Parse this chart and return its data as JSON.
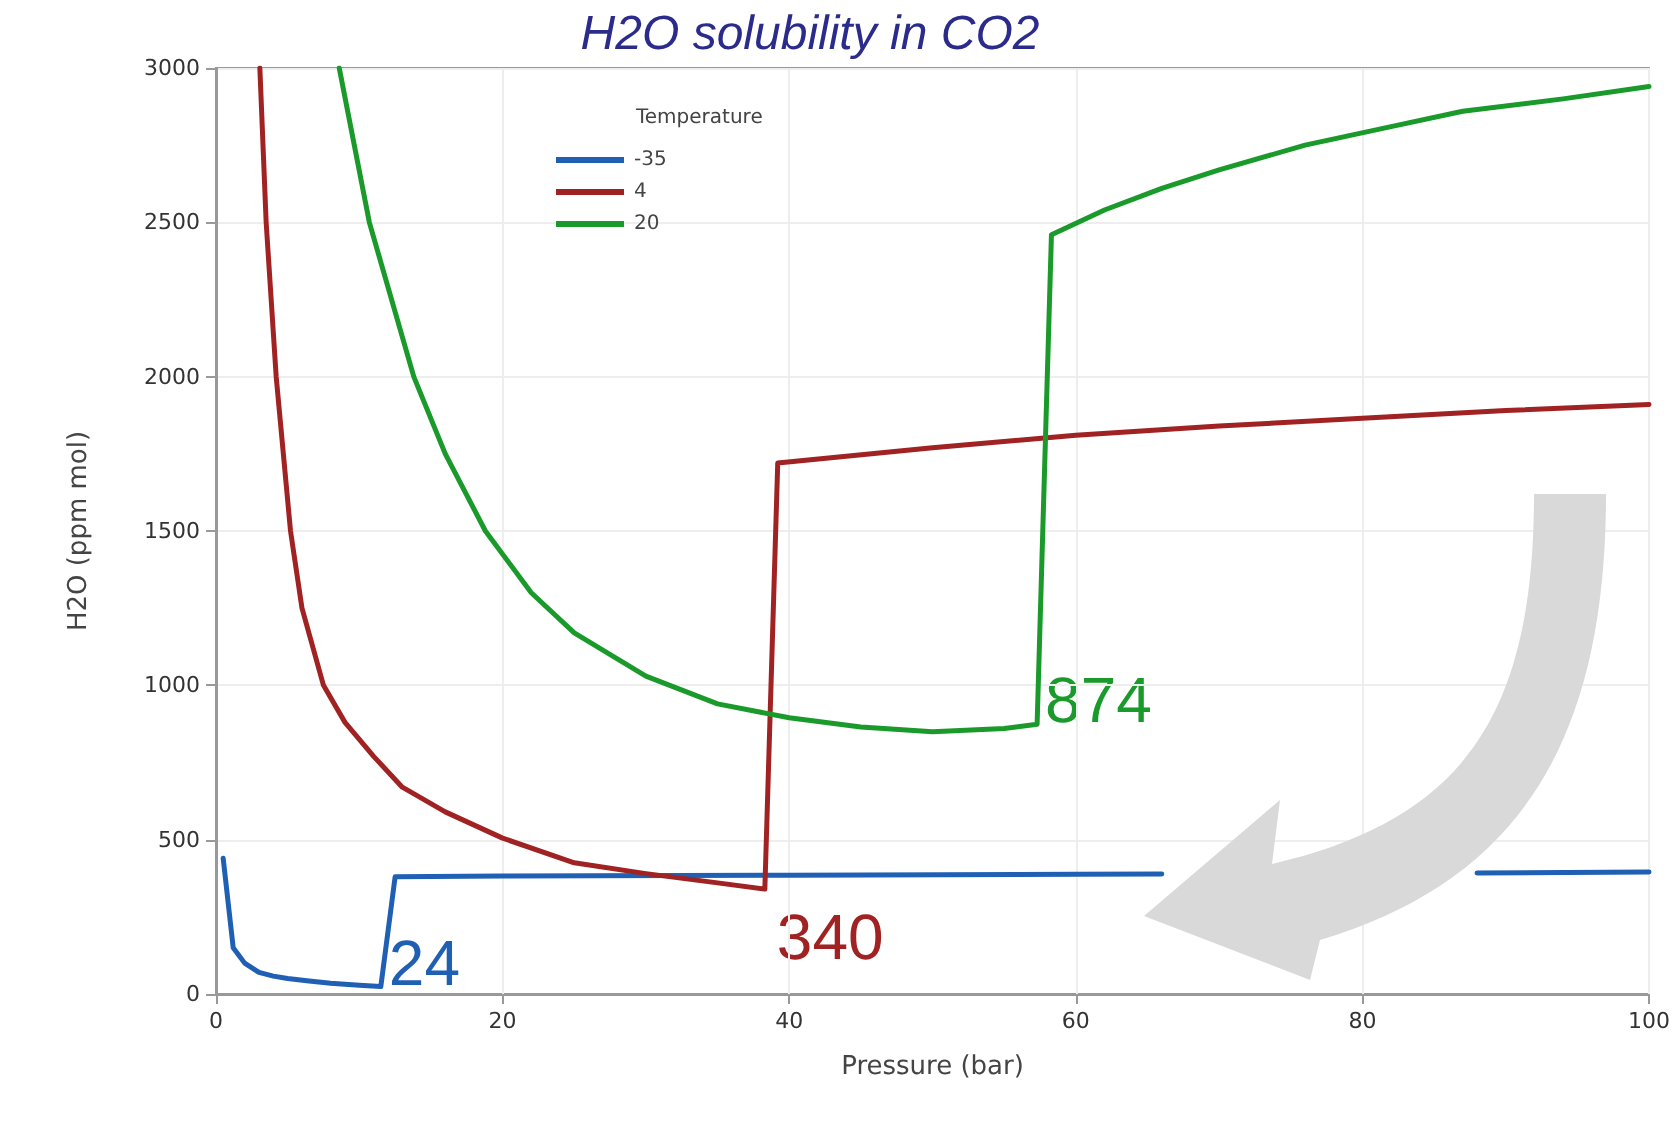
{
  "chart_data": {
    "type": "line",
    "title": "H2O solubility in CO2",
    "xlabel": "Pressure (bar)",
    "ylabel": "H2O (ppm mol)",
    "legend_title": "Temperature",
    "series": [
      {
        "name": "-35",
        "color": "#1f5fb4",
        "x": [
          0.5,
          1.2,
          2,
          3,
          4,
          5,
          6.5,
          8,
          10,
          11.5,
          12.5,
          20,
          40,
          60,
          66,
          76,
          88,
          100
        ],
        "values": [
          440,
          150,
          100,
          70,
          58,
          50,
          42,
          35,
          28,
          24,
          380,
          382,
          385,
          388,
          389,
          null,
          392,
          395
        ]
      },
      {
        "name": "4",
        "color": "#a02222",
        "x": [
          3.06,
          3.5,
          4.2,
          5.2,
          6,
          7.5,
          9,
          11,
          13,
          16,
          20,
          25,
          30,
          35,
          38.3,
          39.2,
          50,
          60,
          70,
          80,
          90,
          100
        ],
        "values": [
          3000,
          2500,
          2000,
          1500,
          1250,
          1000,
          880,
          770,
          670,
          590,
          505,
          425,
          390,
          360,
          340,
          1720,
          1770,
          1810,
          1840,
          1865,
          1890,
          1910
        ]
      },
      {
        "name": "20",
        "color": "#1a9a2a",
        "x": [
          8.6,
          10.7,
          13.8,
          16,
          18.8,
          22,
          25,
          30,
          35,
          40,
          45,
          50,
          55,
          57.3,
          58.3,
          62,
          66,
          70,
          76,
          82,
          87,
          94,
          100
        ],
        "values": [
          3000,
          2500,
          2000,
          1750,
          1500,
          1300,
          1170,
          1030,
          940,
          895,
          865,
          850,
          860,
          874,
          2460,
          2540,
          2610,
          2670,
          2750,
          2810,
          2860,
          2900,
          2940
        ]
      }
    ],
    "annotations": [
      {
        "text": "24",
        "x": 11.5,
        "y": 24
      },
      {
        "text": "340",
        "x": 38.3,
        "y": 340
      },
      {
        "text": "874",
        "x": 57.3,
        "y": 874
      }
    ],
    "xlim": [
      0,
      100
    ],
    "xticks": [
      0,
      20,
      40,
      60,
      80,
      100
    ],
    "ylim": [
      0,
      3000
    ],
    "yticks": [
      0,
      500,
      1000,
      1500,
      2000,
      2500,
      3000
    ],
    "grid": true,
    "legend": "top left",
    "marker": "none",
    "line_style": "solid"
  }
}
